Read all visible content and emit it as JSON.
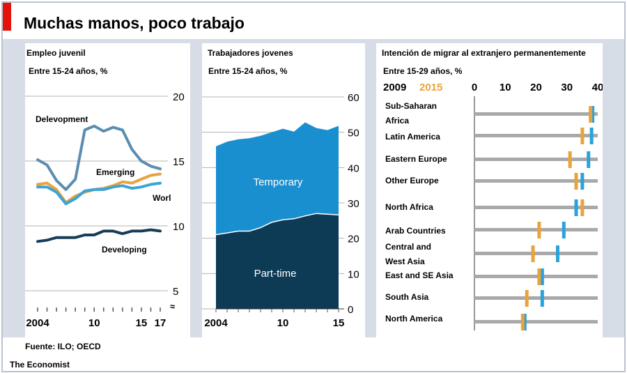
{
  "title": "Muchas manos, poco trabajo",
  "source": "Fuente: ILO; OECD",
  "brand": "The Economist",
  "colors": {
    "developed": "#5b8db0",
    "emerging": "#e8a33d",
    "world": "#3aa3d8",
    "developing": "#173d57",
    "temporary": "#1a8fd0",
    "parttime": "#0d3a55",
    "year2009": "#29a3dc",
    "year2015": "#e8a33d",
    "frame": "#d6dde6",
    "gridline": "#b3b3b3"
  },
  "chart_data": [
    {
      "type": "line",
      "title": "Empleo juvenil",
      "subtitle": "Entre 15-24 años, %",
      "x": [
        2004,
        2005,
        2006,
        2007,
        2008,
        2009,
        2010,
        2011,
        2012,
        2013,
        2014,
        2015,
        2016,
        2017
      ],
      "xticks": [
        "2004",
        "10",
        "15",
        "17"
      ],
      "xtick_values": [
        2004,
        2010,
        2015,
        2017
      ],
      "yticks": [
        5,
        10,
        15,
        20
      ],
      "ylim": [
        5,
        20
      ],
      "series": [
        {
          "name": "Delevopment",
          "color_key": "developed",
          "values": [
            15.1,
            14.7,
            13.5,
            12.8,
            13.6,
            17.4,
            17.7,
            17.3,
            17.6,
            17.4,
            15.9,
            15.0,
            14.6,
            14.4
          ]
        },
        {
          "name": "Emerging",
          "color_key": "emerging",
          "values": [
            13.2,
            13.3,
            12.8,
            11.8,
            12.3,
            12.6,
            12.8,
            12.9,
            13.1,
            13.4,
            13.3,
            13.6,
            13.9,
            14.0
          ]
        },
        {
          "name": "Worl",
          "color_key": "world",
          "values": [
            13.0,
            13.0,
            12.6,
            11.7,
            12.1,
            12.7,
            12.8,
            12.8,
            13.0,
            13.1,
            12.9,
            13.0,
            13.2,
            13.3
          ]
        },
        {
          "name": "Developing",
          "color_key": "developing",
          "values": [
            8.8,
            8.9,
            9.1,
            9.1,
            9.1,
            9.3,
            9.3,
            9.6,
            9.6,
            9.4,
            9.6,
            9.6,
            9.7,
            9.6
          ]
        }
      ]
    },
    {
      "type": "area",
      "title": "Trabajadores jovenes",
      "subtitle": "Entre 15-24 años, %",
      "x": [
        2004,
        2005,
        2006,
        2007,
        2008,
        2009,
        2010,
        2011,
        2012,
        2013,
        2014,
        2015
      ],
      "xticks": [
        "2004",
        "10",
        "15"
      ],
      "xtick_values": [
        2004,
        2010,
        2015
      ],
      "yticks": [
        0,
        10,
        20,
        30,
        40,
        50,
        60
      ],
      "ylim": [
        0,
        60
      ],
      "series": [
        {
          "name": "Part-time",
          "color_key": "parttime",
          "values": [
            21,
            21.5,
            22,
            22,
            23,
            24.5,
            25.2,
            25.5,
            26.3,
            27,
            26.8,
            26.6
          ]
        },
        {
          "name": "Temporary",
          "color_key": "temporary",
          "values": [
            25,
            25.8,
            26,
            26.3,
            26,
            25.5,
            25.8,
            24.7,
            26.5,
            24.2,
            23.8,
            25.2
          ]
        }
      ],
      "series_labels": [
        "Temporary",
        "Part-time"
      ]
    },
    {
      "type": "dot-range",
      "title": "Intención de migrar al extranjero permanentemente",
      "subtitle": "Entre 15-29 años, %",
      "legend": [
        "2009",
        "2015"
      ],
      "xticks": [
        0,
        10,
        20,
        30,
        40
      ],
      "xlim": [
        0,
        40
      ],
      "categories": [
        "Sub-Saharan Africa",
        "Latin America",
        "Eastern Europe",
        "Other Europe",
        "North Africa",
        "Arab Countries",
        "Central and West Asia",
        "East and SE Asia",
        "South Asia",
        "North America"
      ],
      "label_lines": [
        [
          "Sub-Saharan",
          "Africa"
        ],
        [
          "Latin America"
        ],
        [
          "Eastern Europe"
        ],
        [
          "Other Europe"
        ],
        [
          "North Africa"
        ],
        [
          "Arab Countries"
        ],
        [
          "Central and",
          "West Asia"
        ],
        [
          "East and SE Asia"
        ],
        [
          "South Asia"
        ],
        [
          "North America"
        ]
      ],
      "series": [
        {
          "name": "2009",
          "color_key": "year2009",
          "values": [
            38,
            38,
            37,
            35,
            33,
            29,
            27,
            22,
            22,
            16
          ]
        },
        {
          "name": "2015",
          "color_key": "year2015",
          "values": [
            38,
            35,
            31,
            33,
            35,
            21,
            19,
            21,
            17,
            16
          ]
        }
      ]
    }
  ]
}
